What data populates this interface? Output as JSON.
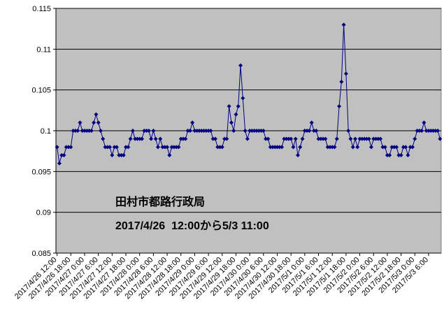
{
  "chart_data": {
    "type": "line",
    "annotations": [
      "田村市都路行政局",
      "2017/4/26  12:00から5/3 11:00"
    ],
    "categories": [
      "2017/4/26 12:00",
      null,
      null,
      null,
      null,
      null,
      "2017/4/26 18:00",
      null,
      null,
      null,
      null,
      null,
      "2017/4/27 0:00",
      null,
      null,
      null,
      null,
      null,
      "2017/4/27 6:00",
      null,
      null,
      null,
      null,
      null,
      "2017/4/27 12:00",
      null,
      null,
      null,
      null,
      null,
      "2017/4/27 18:00",
      null,
      null,
      null,
      null,
      null,
      "2017/4/28 0:00",
      null,
      null,
      null,
      null,
      null,
      "2017/4/28 6:00",
      null,
      null,
      null,
      null,
      null,
      "2017/4/28 12:00",
      null,
      null,
      null,
      null,
      null,
      "2017/4/28 18:00",
      null,
      null,
      null,
      null,
      null,
      "2017/4/29 0:00",
      null,
      null,
      null,
      null,
      null,
      "2017/4/29 6:00",
      null,
      null,
      null,
      null,
      null,
      "2017/4/29 12:00",
      null,
      null,
      null,
      null,
      null,
      "2017/4/29 18:00",
      null,
      null,
      null,
      null,
      null,
      "2017/4/30 0:00",
      null,
      null,
      null,
      null,
      null,
      "2017/4/30 6:00",
      null,
      null,
      null,
      null,
      null,
      "2017/4/30 12:00",
      null,
      null,
      null,
      null,
      null,
      "2017/4/30 18:00",
      null,
      null,
      null,
      null,
      null,
      "2017/5/1 0:00",
      null,
      null,
      null,
      null,
      null,
      "2017/5/1 6:00",
      null,
      null,
      null,
      null,
      null,
      "2017/5/1 12:00",
      null,
      null,
      null,
      null,
      null,
      "2017/5/1 18:00",
      null,
      null,
      null,
      null,
      null,
      "2017/5/2 0:00",
      null,
      null,
      null,
      null,
      null,
      "2017/5/2 6:00",
      null,
      null,
      null,
      null,
      null,
      "2017/5/2 12:00",
      null,
      null,
      null,
      null,
      null,
      "2017/5/2 18:00",
      null,
      null,
      null,
      null,
      null,
      "2017/5/3 0:00",
      null,
      null,
      null,
      null,
      null,
      "2017/5/3 6:00",
      null,
      null,
      null,
      null,
      null
    ],
    "values": [
      0.098,
      0.096,
      0.097,
      0.097,
      0.098,
      0.098,
      0.098,
      0.1,
      0.1,
      0.1,
      0.101,
      0.1,
      0.1,
      0.1,
      0.1,
      0.1,
      0.101,
      0.102,
      0.101,
      0.1,
      0.099,
      0.098,
      0.098,
      0.098,
      0.097,
      0.098,
      0.098,
      0.097,
      0.097,
      0.097,
      0.098,
      0.098,
      0.099,
      0.1,
      0.099,
      0.099,
      0.099,
      0.099,
      0.1,
      0.1,
      0.1,
      0.099,
      0.1,
      0.099,
      0.098,
      0.099,
      0.098,
      0.098,
      0.098,
      0.097,
      0.098,
      0.098,
      0.098,
      0.098,
      0.099,
      0.099,
      0.099,
      0.1,
      0.1,
      0.101,
      0.1,
      0.1,
      0.1,
      0.1,
      0.1,
      0.1,
      0.1,
      0.1,
      0.099,
      0.099,
      0.098,
      0.098,
      0.098,
      0.099,
      0.099,
      0.103,
      0.101,
      0.1,
      0.102,
      0.103,
      0.108,
      0.104,
      0.1,
      0.099,
      0.1,
      0.1,
      0.1,
      0.1,
      0.1,
      0.1,
      0.1,
      0.099,
      0.099,
      0.098,
      0.098,
      0.098,
      0.098,
      0.098,
      0.098,
      0.099,
      0.099,
      0.099,
      0.099,
      0.098,
      0.099,
      0.097,
      0.098,
      0.099,
      0.1,
      0.1,
      0.1,
      0.101,
      0.1,
      0.1,
      0.099,
      0.099,
      0.099,
      0.099,
      0.098,
      0.098,
      0.098,
      0.098,
      0.099,
      0.103,
      0.106,
      0.113,
      0.107,
      0.1,
      0.099,
      0.098,
      0.099,
      0.098,
      0.099,
      0.099,
      0.099,
      0.099,
      0.099,
      0.098,
      0.099,
      0.099,
      0.099,
      0.099,
      0.098,
      0.098,
      0.097,
      0.097,
      0.098,
      0.098,
      0.098,
      0.097,
      0.097,
      0.098,
      0.098,
      0.097,
      0.098,
      0.098,
      0.099,
      0.1,
      0.1,
      0.1,
      0.101,
      0.1,
      0.1,
      0.1,
      0.1,
      0.1,
      0.1,
      0.099
    ],
    "color": "#000080",
    "ylim": [
      0.085,
      0.115
    ],
    "yticks": [
      0.085,
      0.09,
      0.095,
      0.1,
      0.105,
      0.11,
      0.115
    ],
    "grid": true
  }
}
